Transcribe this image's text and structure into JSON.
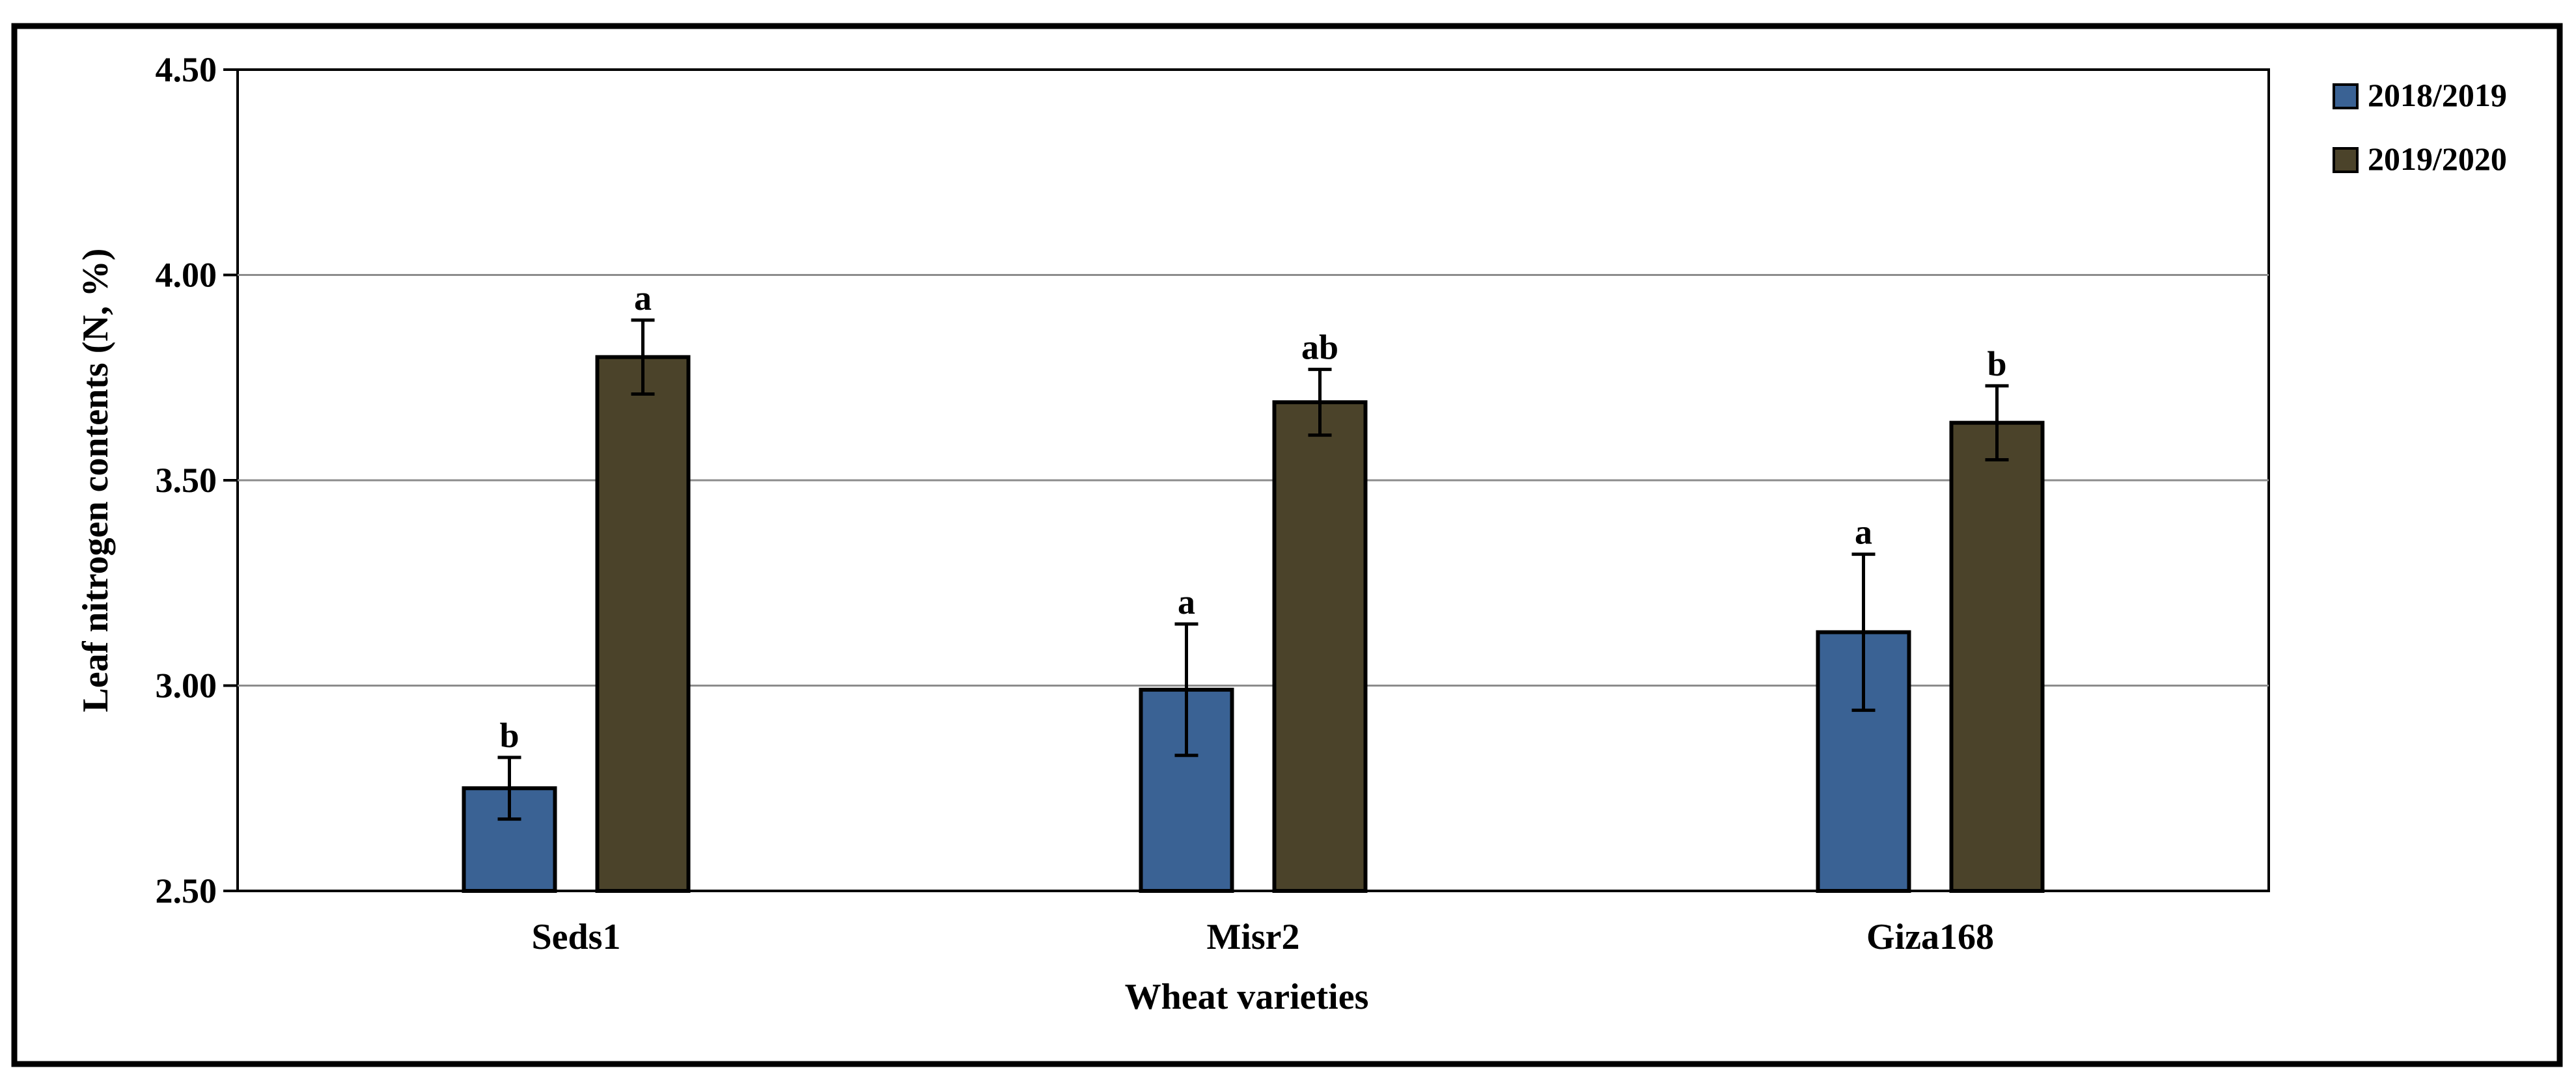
{
  "chart_data": {
    "type": "bar",
    "title": "",
    "xlabel": "Wheat varieties",
    "ylabel": "Leaf nitrogen contents (N, %)",
    "ylim": [
      2.5,
      4.5
    ],
    "yticks": [
      2.5,
      3.0,
      3.5,
      4.0,
      4.5
    ],
    "ytick_labels": [
      "2.50",
      "3.00",
      "3.50",
      "4.00",
      "4.50"
    ],
    "grid": true,
    "legend_position": "top-right",
    "categories": [
      "Seds1",
      "Misr2",
      "Giza168"
    ],
    "series": [
      {
        "name": "2018/2019",
        "color": "#3A6294",
        "values": [
          2.75,
          2.99,
          3.13
        ],
        "errors": [
          0.075,
          0.16,
          0.19
        ],
        "significance": [
          "b",
          "a",
          "a"
        ]
      },
      {
        "name": "2019/2020",
        "color": "#4B432A",
        "values": [
          3.8,
          3.69,
          3.64
        ],
        "errors": [
          0.09,
          0.08,
          0.09
        ],
        "significance": [
          "a",
          "ab",
          "b"
        ]
      }
    ]
  }
}
